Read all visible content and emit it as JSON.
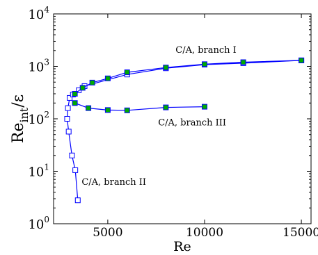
{
  "chart_data": {
    "type": "line",
    "title": "",
    "xlabel": "Re",
    "ylabel_main": "Re",
    "ylabel_sub": "int",
    "ylabel_tail": "/ε",
    "xlim": [
      2200,
      15500
    ],
    "ylim": [
      1,
      10000
    ],
    "yscale": "log",
    "grid": false,
    "x_ticks": [
      {
        "value": 5000,
        "label": "5000"
      },
      {
        "value": 10000,
        "label": "10000"
      },
      {
        "value": 15000,
        "label": "15000"
      }
    ],
    "y_ticks": [
      {
        "value": 1,
        "base": "10",
        "exp": "0"
      },
      {
        "value": 10,
        "base": "10",
        "exp": "1"
      },
      {
        "value": 100,
        "base": "10",
        "exp": "2"
      },
      {
        "value": 1000,
        "base": "10",
        "exp": "3"
      },
      {
        "value": 10000,
        "base": "10",
        "exp": "4"
      }
    ],
    "annotations": [
      {
        "text": "C/A, branch I",
        "x": 8500,
        "y": 1800
      },
      {
        "text": "C/A, branch III",
        "x": 7600,
        "y": 75
      },
      {
        "text": "C/A, branch II",
        "x": 3650,
        "y": 5.5
      }
    ],
    "series": [
      {
        "marker": "open-square",
        "color": "#0000ff",
        "x": [
          3450,
          3320,
          3150,
          2980,
          2900,
          2940,
          3030,
          3200,
          3500,
          3800,
          6000,
          8000,
          10000,
          12000,
          15000
        ],
        "y": [
          2.8,
          10.5,
          20,
          57,
          100,
          160,
          250,
          290,
          350,
          420,
          700,
          920,
          1080,
          1150,
          1300
        ]
      },
      {
        "marker": "filled-square",
        "color": "#00aa00",
        "x": [
          3300,
          3700,
          4200,
          5000,
          6000,
          8000,
          10000,
          12000,
          15000
        ],
        "y": [
          300,
          390,
          490,
          590,
          770,
          950,
          1100,
          1200,
          1300
        ]
      },
      {
        "marker": "filled-square",
        "color": "#00aa00",
        "x": [
          3300,
          4000,
          5000,
          6000,
          8000,
          10000
        ],
        "y": [
          200,
          160,
          147,
          145,
          165,
          170
        ]
      }
    ]
  }
}
